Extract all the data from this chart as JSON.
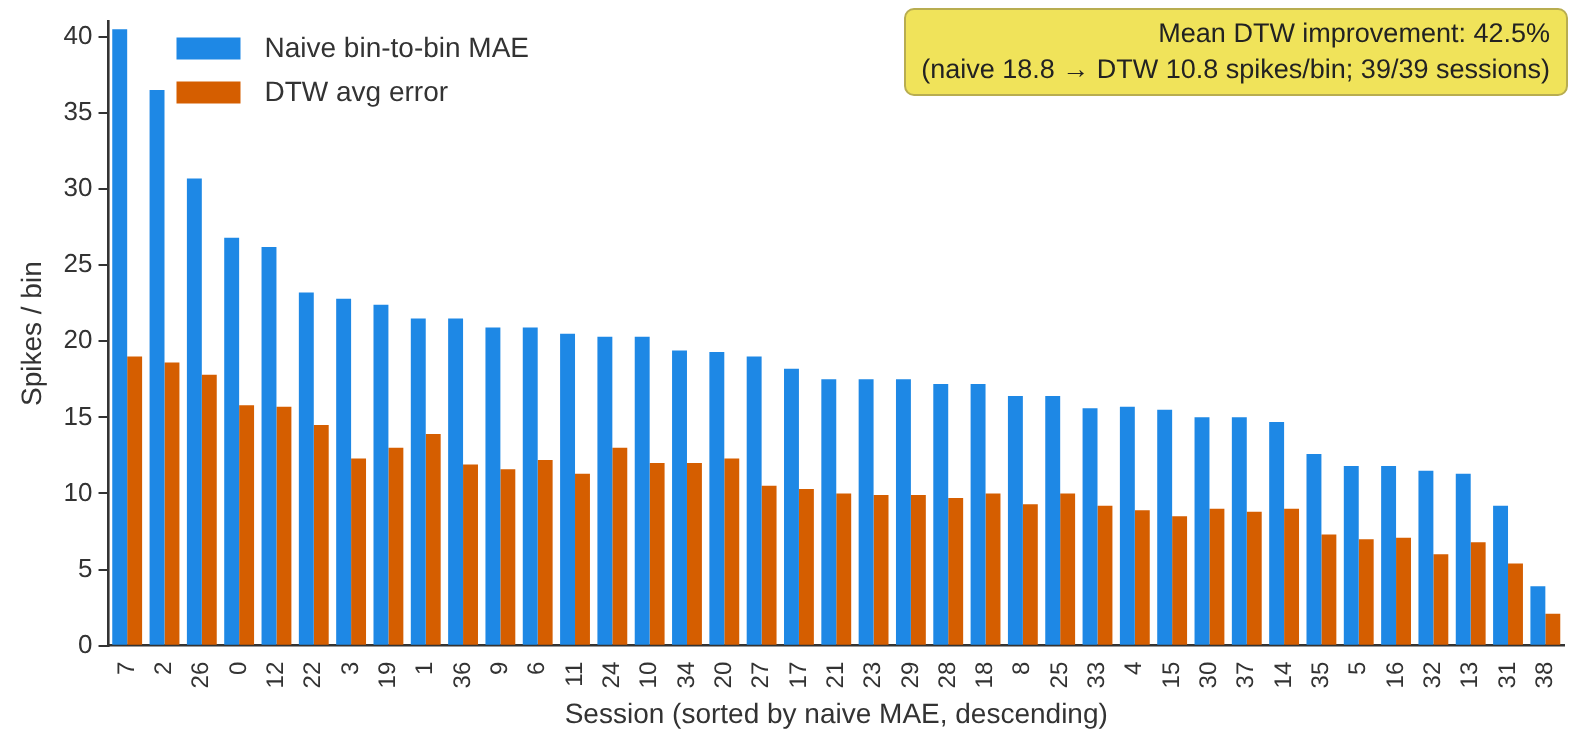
{
  "chart_data": {
    "type": "bar",
    "xlabel": "Session (sorted by naive MAE, descending)",
    "ylabel": "Spikes / bin",
    "categories": [
      "7",
      "2",
      "26",
      "0",
      "12",
      "22",
      "3",
      "19",
      "1",
      "36",
      "9",
      "6",
      "11",
      "24",
      "10",
      "34",
      "20",
      "27",
      "17",
      "21",
      "23",
      "29",
      "28",
      "18",
      "8",
      "25",
      "33",
      "4",
      "15",
      "30",
      "37",
      "14",
      "35",
      "5",
      "16",
      "32",
      "13",
      "31",
      "38"
    ],
    "series": [
      {
        "name": "Naive bin-to-bin MAE",
        "color": "#1e88e5",
        "values": [
          40.5,
          36.5,
          30.7,
          26.8,
          26.2,
          23.2,
          22.8,
          22.4,
          21.5,
          21.5,
          20.9,
          20.9,
          20.5,
          20.3,
          20.3,
          19.4,
          19.3,
          19.0,
          18.2,
          17.5,
          17.5,
          17.5,
          17.2,
          17.2,
          16.4,
          16.4,
          15.6,
          15.7,
          15.5,
          15.0,
          15.0,
          14.7,
          12.6,
          11.8,
          11.8,
          11.5,
          11.3,
          9.2,
          3.9
        ]
      },
      {
        "name": "DTW avg error",
        "color": "#d55e00",
        "values": [
          19.0,
          18.6,
          17.8,
          15.8,
          15.7,
          14.5,
          12.3,
          13.0,
          13.9,
          11.9,
          11.6,
          12.2,
          11.3,
          13.0,
          12.0,
          12.0,
          12.3,
          10.5,
          10.3,
          10.0,
          9.9,
          9.9,
          9.7,
          10.0,
          9.3,
          10.0,
          9.2,
          8.9,
          8.5,
          9.0,
          8.8,
          9.0,
          7.3,
          7.0,
          7.1,
          6.0,
          6.8,
          5.4,
          2.1
        ]
      }
    ],
    "ylim": [
      0,
      41
    ],
    "yticks": [
      0,
      5,
      10,
      15,
      20,
      25,
      30,
      35,
      40
    ],
    "grid": false,
    "legend": "top left",
    "annotations": [
      "Mean DTW improvement: 42.5%\n(naive 18.8 → DTW 10.8 spikes/bin; 39/39 sessions)"
    ]
  }
}
